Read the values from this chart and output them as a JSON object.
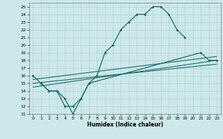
{
  "xlabel": "Humidex (Indice chaleur)",
  "bg_color": "#cce8ea",
  "grid_color": "#aacfd2",
  "line_color": "#1a6b6b",
  "xlim": [
    -0.5,
    23.5
  ],
  "ylim": [
    11,
    25.5
  ],
  "xticks": [
    0,
    1,
    2,
    3,
    4,
    5,
    6,
    7,
    8,
    9,
    10,
    11,
    12,
    13,
    14,
    15,
    16,
    17,
    18,
    19,
    20,
    21,
    22,
    23
  ],
  "yticks": [
    11,
    12,
    13,
    14,
    15,
    16,
    17,
    18,
    19,
    20,
    21,
    22,
    23,
    24,
    25
  ],
  "line1_x": [
    0,
    1,
    2,
    3,
    4,
    5,
    6,
    7,
    8,
    9,
    10,
    11,
    12,
    13,
    14,
    15,
    16,
    17,
    18,
    19
  ],
  "line1_y": [
    16,
    15,
    14,
    14,
    13,
    11,
    13,
    15,
    16,
    19,
    20,
    22,
    23,
    24,
    24,
    25,
    25,
    24,
    22,
    21
  ],
  "line2_x": [
    1,
    2,
    3,
    4,
    5,
    6,
    7,
    21,
    22,
    23
  ],
  "line2_y": [
    15,
    14,
    14,
    12,
    12,
    13,
    15,
    19,
    18,
    18
  ],
  "line3_x": [
    0,
    23
  ],
  "line3_y": [
    15.5,
    18.5
  ],
  "line4_x": [
    0,
    23
  ],
  "line4_y": [
    14.5,
    18.0
  ],
  "line5_x": [
    0,
    23
  ],
  "line5_y": [
    15.0,
    17.5
  ]
}
